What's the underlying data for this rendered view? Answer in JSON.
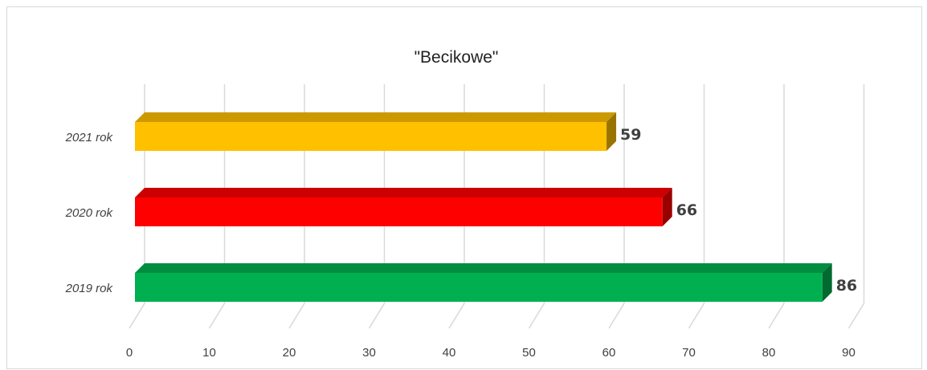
{
  "chart_data": {
    "type": "bar",
    "orientation": "horizontal",
    "style": "3d",
    "title": "\"Becikowe\"",
    "xlabel": "",
    "ylabel": "",
    "categories": [
      "2021 rok",
      "2020 rok",
      "2019 rok"
    ],
    "values": [
      59,
      66,
      86
    ],
    "colors": [
      "#FFC000",
      "#FF0000",
      "#00B050"
    ],
    "data_labels": [
      "59",
      "66",
      "86"
    ],
    "xlim": [
      0,
      90
    ],
    "xticks": [
      0,
      10,
      20,
      30,
      40,
      50,
      60,
      70,
      80,
      90
    ],
    "xtick_labels": [
      "0",
      "10",
      "20",
      "30",
      "40",
      "50",
      "60",
      "70",
      "80",
      "90"
    ],
    "grid": true,
    "legend": "none"
  }
}
